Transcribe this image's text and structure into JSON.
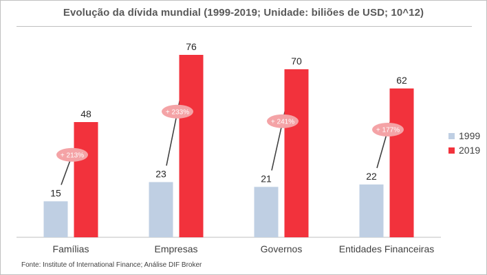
{
  "chart_data": {
    "type": "bar",
    "title": "Evolução da dívida mundial (1999-2019; Unidade: biliões de USD; 10^12)",
    "categories": [
      "Famílias",
      "Empresas",
      "Governos",
      "Entidades Financeiras"
    ],
    "series": [
      {
        "name": "1999",
        "values": [
          15,
          23,
          21,
          22
        ],
        "color": "#bfcfe3"
      },
      {
        "name": "2019",
        "values": [
          48,
          76,
          70,
          62
        ],
        "color": "#f2323c"
      }
    ],
    "annotations": [
      "+ 213%",
      "+ 233%",
      "+ 241%",
      "+ 177%"
    ],
    "annotation_color": "#f4a3a6",
    "arrow_color": "#404040",
    "ylim": [
      0,
      80
    ],
    "xlabel": "",
    "ylabel": "",
    "grid": false,
    "legend": "right"
  },
  "source": "Fonte: Institute of International Finance; Análise DIF Broker"
}
